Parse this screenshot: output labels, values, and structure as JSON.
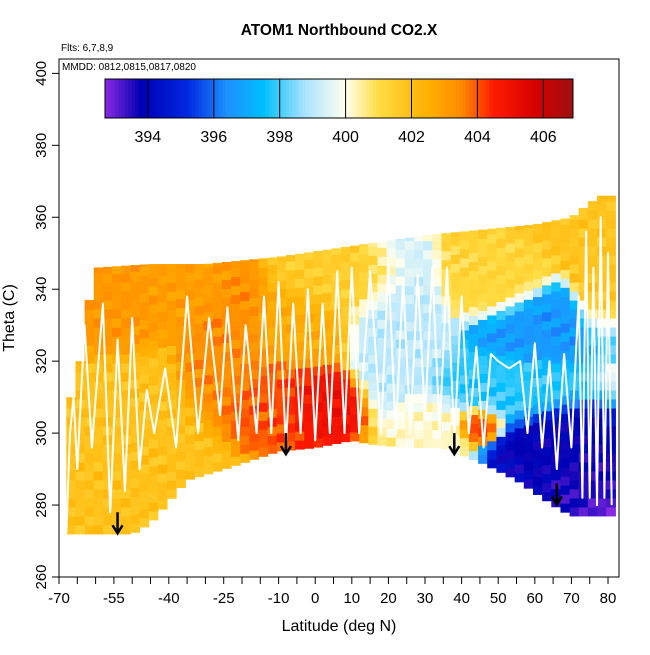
{
  "chart_data": {
    "type": "heatmap",
    "title": "ATOM1 Northbound CO2.X",
    "annotations": [
      "Flts: 6,7,8,9",
      "MMDD: 0812,0815,0817,0820"
    ],
    "xlabel": "Latitude (deg N)",
    "ylabel": "Theta (C)",
    "xlim": [
      -70,
      83
    ],
    "ylim": [
      260,
      404
    ],
    "x_ticks": [
      -70,
      -55,
      -40,
      -25,
      -10,
      0,
      10,
      20,
      30,
      40,
      50,
      60,
      70,
      80
    ],
    "x_minor_ticks": [
      -65,
      -60,
      -50,
      -45,
      -35,
      -30,
      -20,
      -15,
      -5,
      5,
      15,
      25,
      35,
      45,
      55,
      65,
      75
    ],
    "y_ticks": [
      260,
      280,
      300,
      320,
      340,
      360,
      380,
      400
    ],
    "grid": false,
    "colorbar": {
      "range": [
        392.7,
        406.9
      ],
      "ticks": [
        394,
        396,
        398,
        400,
        402,
        404,
        406
      ],
      "stops": [
        {
          "value": 392.7,
          "color": "#8a2be2"
        },
        {
          "value": 393.8,
          "color": "#0000b4"
        },
        {
          "value": 395.2,
          "color": "#0028e0"
        },
        {
          "value": 396.4,
          "color": "#1e90ff"
        },
        {
          "value": 397.5,
          "color": "#00bfff"
        },
        {
          "value": 398.8,
          "color": "#aee4ff"
        },
        {
          "value": 400.0,
          "color": "#fffff0"
        },
        {
          "value": 401.0,
          "color": "#ffdd44"
        },
        {
          "value": 402.5,
          "color": "#ffb000"
        },
        {
          "value": 403.5,
          "color": "#ff8c00"
        },
        {
          "value": 404.5,
          "color": "#ff1a00"
        },
        {
          "value": 405.8,
          "color": "#d40000"
        },
        {
          "value": 406.9,
          "color": "#9e1010"
        }
      ]
    },
    "field": {
      "lat_step": 2.5,
      "theta_step": 2.5,
      "upper_boundary": [
        [
          -60,
          346
        ],
        [
          -45,
          347
        ],
        [
          -30,
          347
        ],
        [
          -10,
          349
        ],
        [
          10,
          352
        ],
        [
          30,
          355
        ],
        [
          50,
          357
        ],
        [
          60,
          358
        ],
        [
          70,
          360
        ],
        [
          75,
          364
        ],
        [
          78,
          366
        ]
      ],
      "lower_boundary": [
        [
          -68,
          272
        ],
        [
          -50,
          272
        ],
        [
          -45,
          275
        ],
        [
          -35,
          287
        ],
        [
          -25,
          290
        ],
        [
          -10,
          295
        ],
        [
          0,
          296
        ],
        [
          10,
          298
        ],
        [
          15,
          297
        ],
        [
          25,
          296
        ],
        [
          35,
          296
        ],
        [
          45,
          292
        ],
        [
          55,
          287
        ],
        [
          65,
          280
        ],
        [
          70,
          277
        ],
        [
          80,
          277
        ]
      ],
      "left_boundary": [
        [
          -68,
          272
        ],
        [
          -68,
          305
        ],
        [
          -63,
          325
        ],
        [
          -60,
          346
        ]
      ],
      "background_value": 401.9,
      "regions": [
        {
          "lat": -57,
          "theta": 338,
          "dlat": 12,
          "dtheta": 9,
          "value": 403.2
        },
        {
          "lat": -38,
          "theta": 340,
          "dlat": 13,
          "dtheta": 8,
          "value": 403.0
        },
        {
          "lat": -22,
          "theta": 327,
          "dlat": 9,
          "dtheta": 14,
          "value": 403.4
        },
        {
          "lat": -10,
          "theta": 310,
          "dlat": 10,
          "dtheta": 10,
          "value": 404.0
        },
        {
          "lat": 0,
          "theta": 309,
          "dlat": 9,
          "dtheta": 8,
          "value": 405.0
        },
        {
          "lat": -5,
          "theta": 329,
          "dlat": 12,
          "dtheta": 10,
          "value": 402.6
        },
        {
          "lat": 8,
          "theta": 342,
          "dlat": 14,
          "dtheta": 8,
          "value": 401.5
        },
        {
          "lat": 22,
          "theta": 330,
          "dlat": 10,
          "dtheta": 16,
          "value": 399.0
        },
        {
          "lat": 32,
          "theta": 303,
          "dlat": 8,
          "dtheta": 7,
          "value": 400.2
        },
        {
          "lat": 48,
          "theta": 342,
          "dlat": 10,
          "dtheta": 8,
          "value": 401.2
        },
        {
          "lat": 52,
          "theta": 312,
          "dlat": 16,
          "dtheta": 8,
          "value": 397.8
        },
        {
          "lat": 62,
          "theta": 329,
          "dlat": 14,
          "dtheta": 8,
          "value": 396.6
        },
        {
          "lat": 66,
          "theta": 296,
          "dlat": 12,
          "dtheta": 10,
          "value": 393.8
        },
        {
          "lat": 74,
          "theta": 286,
          "dlat": 9,
          "dtheta": 9,
          "value": 393.5
        },
        {
          "lat": 78,
          "theta": 279,
          "dlat": 4,
          "dtheta": 3,
          "value": 392.8
        },
        {
          "lat": 45,
          "theta": 303,
          "dlat": 5,
          "dtheta": 4,
          "value": 404.5
        },
        {
          "lat": 77,
          "theta": 345,
          "dlat": 5,
          "dtheta": 14,
          "value": 401.8
        }
      ]
    },
    "flight_track": [
      [
        -68,
        272
      ],
      [
        -67,
        300
      ],
      [
        -66,
        310
      ],
      [
        -65,
        290
      ],
      [
        -63,
        330
      ],
      [
        -61,
        296
      ],
      [
        -58,
        336
      ],
      [
        -56,
        278
      ],
      [
        -54,
        326
      ],
      [
        -52,
        284
      ],
      [
        -50,
        332
      ],
      [
        -48,
        290
      ],
      [
        -46,
        312
      ],
      [
        -44,
        300
      ],
      [
        -41,
        318
      ],
      [
        -38,
        296
      ],
      [
        -35,
        338
      ],
      [
        -32,
        300
      ],
      [
        -29,
        332
      ],
      [
        -26,
        305
      ],
      [
        -24,
        335
      ],
      [
        -21,
        298
      ],
      [
        -19,
        330
      ],
      [
        -16,
        300
      ],
      [
        -14,
        338
      ],
      [
        -12,
        300
      ],
      [
        -10,
        342
      ],
      [
        -8,
        296
      ],
      [
        -6,
        336
      ],
      [
        -4,
        300
      ],
      [
        -2,
        340
      ],
      [
        0,
        298
      ],
      [
        2,
        336
      ],
      [
        4,
        300
      ],
      [
        6,
        345
      ],
      [
        8,
        300
      ],
      [
        10,
        346
      ],
      [
        12,
        300
      ],
      [
        15,
        345
      ],
      [
        18,
        300
      ],
      [
        20,
        347
      ],
      [
        22,
        300
      ],
      [
        24,
        343
      ],
      [
        26,
        300
      ],
      [
        28,
        344
      ],
      [
        30,
        304
      ],
      [
        32,
        346
      ],
      [
        34,
        300
      ],
      [
        36,
        346
      ],
      [
        38,
        298
      ],
      [
        40,
        338
      ],
      [
        42,
        300
      ],
      [
        44,
        324
      ],
      [
        46,
        296
      ],
      [
        48,
        322
      ],
      [
        50,
        320
      ],
      [
        53,
        318
      ],
      [
        56,
        320
      ],
      [
        58,
        300
      ],
      [
        60,
        325
      ],
      [
        62,
        296
      ],
      [
        64,
        320
      ],
      [
        66,
        290
      ],
      [
        68,
        322
      ],
      [
        70,
        296
      ],
      [
        72,
        338
      ],
      [
        73,
        282
      ],
      [
        74,
        356
      ],
      [
        75,
        282
      ],
      [
        76,
        346
      ],
      [
        77,
        280
      ],
      [
        78,
        360
      ],
      [
        79,
        282
      ],
      [
        80,
        350
      ],
      [
        81,
        280
      ]
    ],
    "markers": [
      {
        "type": "down-arrow",
        "lat": -54,
        "theta": 278
      },
      {
        "type": "down-arrow",
        "lat": -8,
        "theta": 300
      },
      {
        "type": "down-arrow",
        "lat": 38,
        "theta": 300
      },
      {
        "type": "down-arrow",
        "lat": 66,
        "theta": 286
      }
    ]
  }
}
